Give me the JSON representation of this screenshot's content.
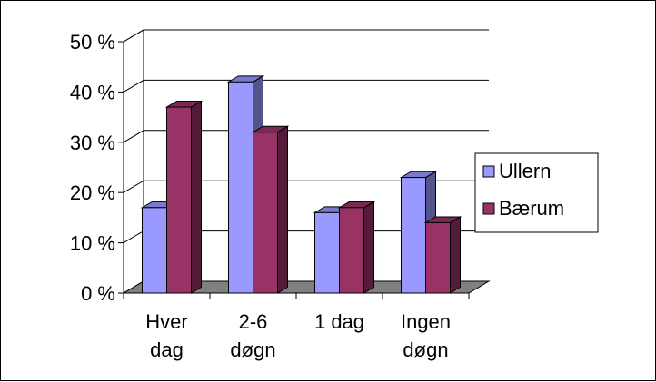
{
  "chart_data": {
    "type": "bar",
    "categories": [
      [
        "Hver",
        "dag"
      ],
      [
        "2-6",
        "døgn"
      ],
      [
        "1 dag"
      ],
      [
        "Ingen",
        "døgn"
      ]
    ],
    "series": [
      {
        "name": "Ullern",
        "values": [
          17,
          42,
          16,
          23
        ],
        "color": "#9999ff"
      },
      {
        "name": "Bærum",
        "values": [
          37,
          32,
          17,
          14
        ],
        "color": "#993366"
      }
    ],
    "y_ticks": [
      "0 %",
      "10 %",
      "20 %",
      "30 %",
      "40 %",
      "50 %"
    ],
    "ylim": [
      0,
      50
    ],
    "xlabel": "",
    "ylabel": "",
    "grid": true,
    "legend_position": "right",
    "style": "3d-clustered-column"
  }
}
